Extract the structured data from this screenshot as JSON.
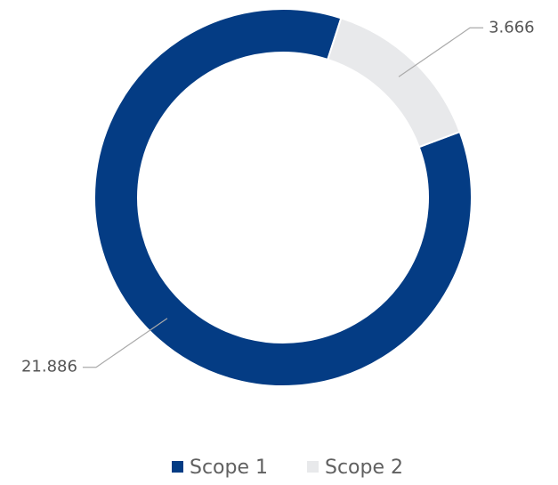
{
  "chart_data": {
    "type": "donut",
    "categories": [
      "Scope 1",
      "Scope 2"
    ],
    "series": [
      {
        "name": "Scope 1",
        "color": "#043c84"
      },
      {
        "name": "Scope 2",
        "color": "#e8e9eb"
      }
    ],
    "values": [
      21.886,
      3.666
    ]
  }
}
